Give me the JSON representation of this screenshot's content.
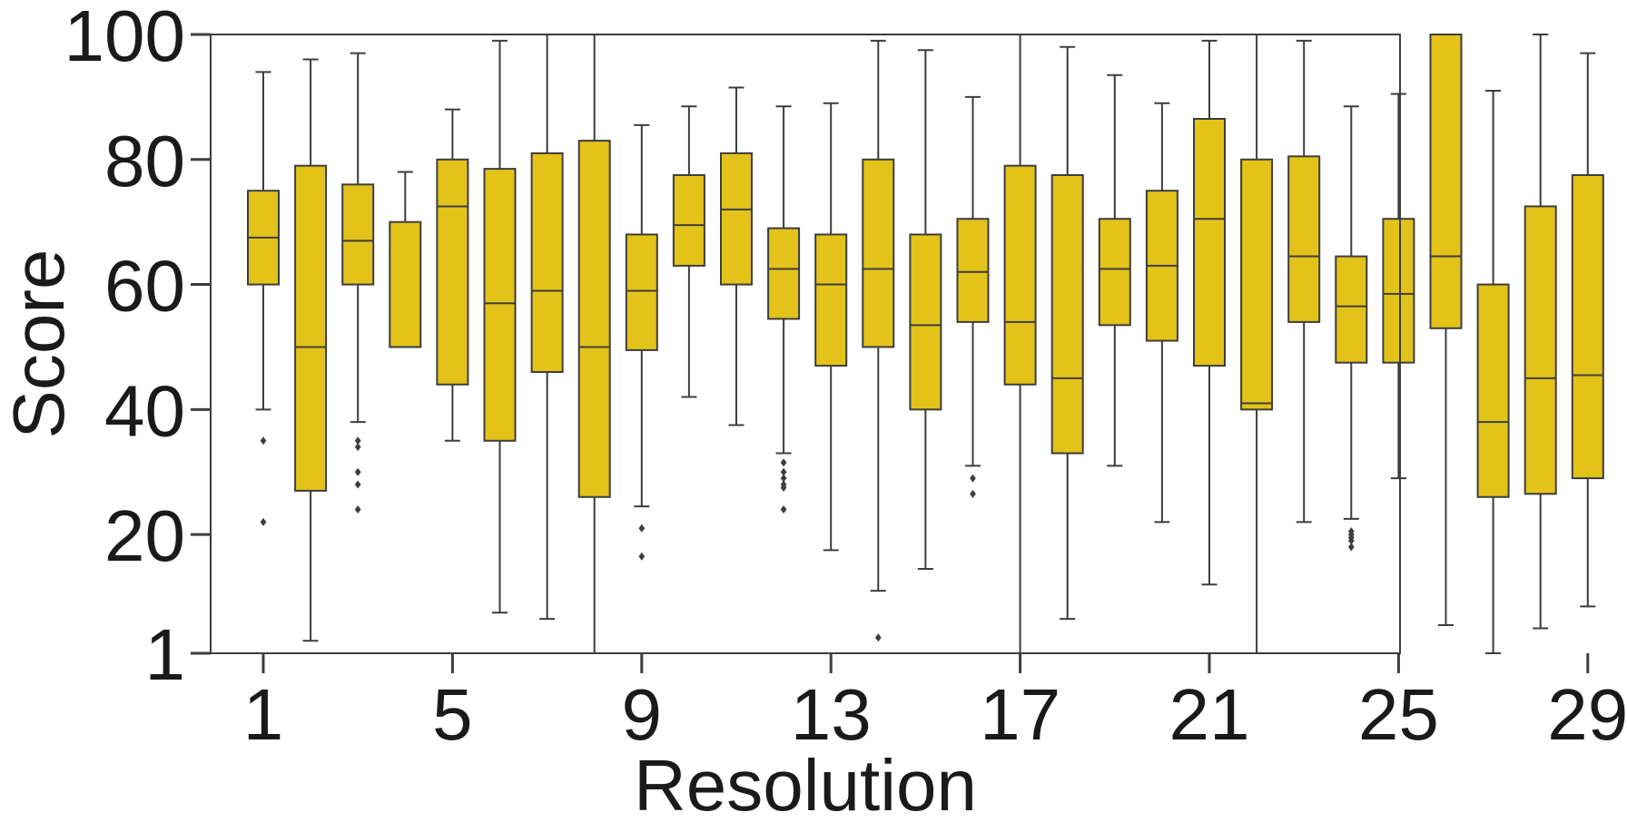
{
  "chart_data": {
    "type": "box",
    "xlabel": "Resolution",
    "ylabel": "Score",
    "ylim": [
      1,
      100
    ],
    "yticks": [
      1,
      20,
      40,
      60,
      80,
      100
    ],
    "xticks": [
      1,
      5,
      9,
      13,
      17,
      21,
      25,
      29
    ],
    "grid": false,
    "box_color": "#e3c31a",
    "line_color": "#3d3d3d",
    "boxes": [
      {
        "x": 1,
        "whisker_low": 40,
        "q1": 60,
        "median": 67.5,
        "q3": 75,
        "whisker_high": 94,
        "outliers": [
          35,
          22
        ]
      },
      {
        "x": 2,
        "whisker_low": 3,
        "q1": 27,
        "median": 50,
        "q3": 79,
        "whisker_high": 96,
        "outliers": []
      },
      {
        "x": 3,
        "whisker_low": 38,
        "q1": 60,
        "median": 67,
        "q3": 76,
        "whisker_high": 97,
        "outliers": [
          35,
          34,
          30,
          28,
          24
        ]
      },
      {
        "x": 4,
        "whisker_low": 50,
        "q1": 50,
        "median": 50,
        "q3": 70,
        "whisker_high": 78,
        "outliers": []
      },
      {
        "x": 5,
        "whisker_low": 35,
        "q1": 44,
        "median": 72.5,
        "q3": 80,
        "whisker_high": 88,
        "outliers": []
      },
      {
        "x": 6,
        "whisker_low": 7.5,
        "q1": 35,
        "median": 57,
        "q3": 78.5,
        "whisker_high": 99,
        "outliers": []
      },
      {
        "x": 7,
        "whisker_low": 6.5,
        "q1": 46,
        "median": 59,
        "q3": 81,
        "whisker_high": 100,
        "outliers": []
      },
      {
        "x": 8,
        "whisker_low": 1,
        "q1": 26,
        "median": 50,
        "q3": 83,
        "whisker_high": 100,
        "outliers": []
      },
      {
        "x": 9,
        "whisker_low": 24.5,
        "q1": 49.5,
        "median": 59,
        "q3": 68,
        "whisker_high": 85.5,
        "outliers": [
          21,
          16.5
        ]
      },
      {
        "x": 10,
        "whisker_low": 42,
        "q1": 63,
        "median": 69.5,
        "q3": 77.5,
        "whisker_high": 88.5,
        "outliers": []
      },
      {
        "x": 11,
        "whisker_low": 37.5,
        "q1": 60,
        "median": 72,
        "q3": 81,
        "whisker_high": 91.5,
        "outliers": []
      },
      {
        "x": 12,
        "whisker_low": 33,
        "q1": 54.5,
        "median": 62.5,
        "q3": 69,
        "whisker_high": 88.5,
        "outliers": [
          31.5,
          30,
          29,
          28,
          27.5,
          24
        ]
      },
      {
        "x": 13,
        "whisker_low": 17.5,
        "q1": 47,
        "median": 60,
        "q3": 68,
        "whisker_high": 89,
        "outliers": []
      },
      {
        "x": 14,
        "whisker_low": 11,
        "q1": 50,
        "median": 62.5,
        "q3": 80,
        "whisker_high": 99,
        "outliers": [
          3.5
        ]
      },
      {
        "x": 15,
        "whisker_low": 14.5,
        "q1": 40,
        "median": 53.5,
        "q3": 68,
        "whisker_high": 97.5,
        "outliers": []
      },
      {
        "x": 16,
        "whisker_low": 31,
        "q1": 54,
        "median": 62,
        "q3": 70.5,
        "whisker_high": 90,
        "outliers": [
          29,
          26.5
        ]
      },
      {
        "x": 17,
        "whisker_low": 1,
        "q1": 44,
        "median": 54,
        "q3": 79,
        "whisker_high": 100,
        "outliers": []
      },
      {
        "x": 18,
        "whisker_low": 6.5,
        "q1": 33,
        "median": 45,
        "q3": 77.5,
        "whisker_high": 98,
        "outliers": []
      },
      {
        "x": 19,
        "whisker_low": 31,
        "q1": 53.5,
        "median": 62.5,
        "q3": 70.5,
        "whisker_high": 93.5,
        "outliers": []
      },
      {
        "x": 20,
        "whisker_low": 22,
        "q1": 51,
        "median": 63,
        "q3": 75,
        "whisker_high": 89,
        "outliers": []
      },
      {
        "x": 21,
        "whisker_low": 12,
        "q1": 47,
        "median": 70.5,
        "q3": 86.5,
        "whisker_high": 99,
        "outliers": []
      },
      {
        "x": 22,
        "whisker_low": 1,
        "q1": 40,
        "median": 41,
        "q3": 80,
        "whisker_high": 100,
        "outliers": []
      },
      {
        "x": 23,
        "whisker_low": 22,
        "q1": 54,
        "median": 64.5,
        "q3": 80.5,
        "whisker_high": 99,
        "outliers": []
      },
      {
        "x": 24,
        "whisker_low": 22.5,
        "q1": 47.5,
        "median": 56.5,
        "q3": 64.5,
        "whisker_high": 88.5,
        "outliers": [
          20.5,
          20,
          19.5,
          19,
          18
        ]
      },
      {
        "x": 25,
        "whisker_low": 29,
        "q1": 47.5,
        "median": 58.5,
        "q3": 70.5,
        "whisker_high": 90.5,
        "outliers": []
      },
      {
        "x": 26,
        "whisker_low": 5.5,
        "q1": 53,
        "median": 64.5,
        "q3": 100,
        "whisker_high": 100,
        "outliers": []
      },
      {
        "x": 27,
        "whisker_low": 1,
        "q1": 26,
        "median": 38,
        "q3": 60,
        "whisker_high": 91,
        "outliers": []
      },
      {
        "x": 28,
        "whisker_low": 5,
        "q1": 26.5,
        "median": 45,
        "q3": 72.5,
        "whisker_high": 100,
        "outliers": []
      },
      {
        "x": 29,
        "whisker_low": 8.5,
        "q1": 29,
        "median": 45.5,
        "q3": 77.5,
        "whisker_high": 97,
        "outliers": []
      }
    ]
  }
}
